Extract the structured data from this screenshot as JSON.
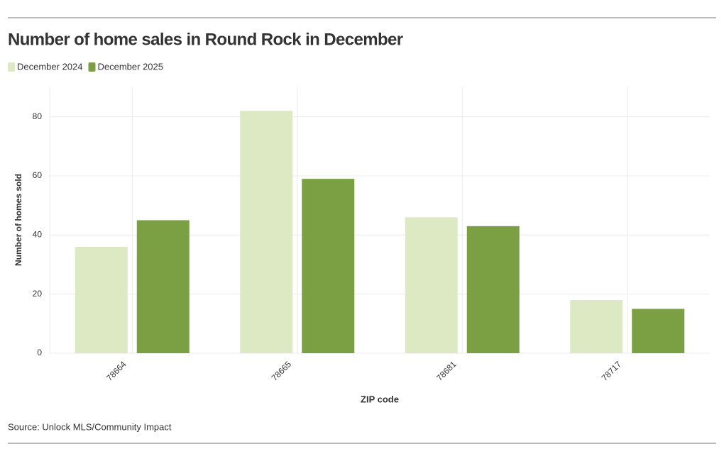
{
  "chart_data": {
    "type": "bar",
    "title": "Number of home sales in Round Rock in December",
    "categories": [
      "78664",
      "78665",
      "78681",
      "78717"
    ],
    "series": [
      {
        "name": "December 2024",
        "color": "#dce9c3",
        "values": [
          36,
          82,
          46,
          18
        ]
      },
      {
        "name": "December 2025",
        "color": "#7aa043",
        "values": [
          45,
          59,
          43,
          15
        ]
      }
    ],
    "ylim": [
      0,
      90
    ],
    "yticks": [
      0,
      20,
      40,
      60,
      80
    ],
    "grid": true,
    "y_label": "Number of homes sold",
    "x_label": "ZIP code",
    "source": "Source: Unlock MLS/Community Impact",
    "legend": "top-left"
  }
}
